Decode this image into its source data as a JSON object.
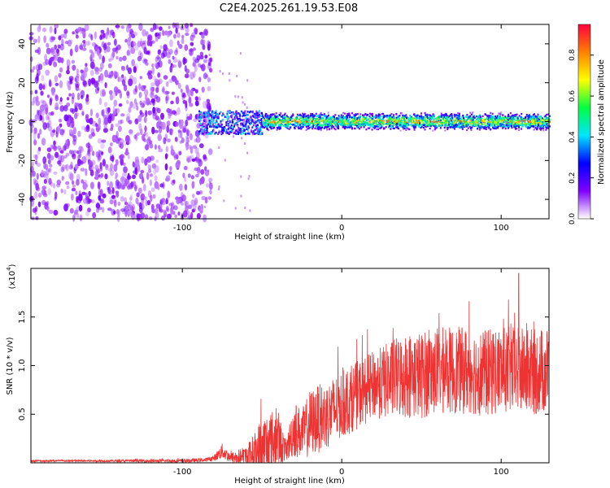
{
  "figure_title": "C2E4.2025.261.19.53.E08",
  "chart_data": [
    {
      "type": "heatmap",
      "title": "C2E4.2025.261.19.53.E08",
      "xlabel": "Height of straight line (km)",
      "ylabel": "Frequency (Hz)",
      "xlim": [
        -195,
        130
      ],
      "ylim": [
        -50,
        50
      ],
      "xticks": [
        -100,
        0,
        100
      ],
      "yticks": [
        -40,
        -20,
        0,
        20,
        40
      ],
      "xtick_labels": [
        "-100",
        "0",
        "100"
      ],
      "ytick_labels": [
        "-40",
        "-20",
        "0",
        "20",
        "40"
      ],
      "colorbar": {
        "label": "Normalized spectral amplitude",
        "range": [
          0,
          0.95
        ],
        "ticks": [
          0.0,
          0.2,
          0.4,
          0.6,
          0.8
        ],
        "tick_labels": [
          "0.0",
          "0.2",
          "0.4",
          "0.6",
          "0.8"
        ],
        "colormap": [
          "#ffffff",
          "#8000ff",
          "#0000ff",
          "#00e5ff",
          "#00ff40",
          "#ffff00",
          "#ff8000",
          "#ff0040"
        ]
      },
      "regions": [
        {
          "name": "noise",
          "x_range": [
            -195,
            -90
          ],
          "freq_range": [
            -50,
            50
          ],
          "amplitude": 0.15
        },
        {
          "name": "onset",
          "x_range": [
            -90,
            -50
          ],
          "center_freq": 0,
          "half_width_hz": 6,
          "amplitude": 0.3
        },
        {
          "name": "carrier",
          "x_range": [
            -50,
            130
          ],
          "center_freq": 0.5,
          "half_width_hz": 3,
          "peak_amplitude": 0.9
        }
      ]
    },
    {
      "type": "line",
      "xlabel": "Height of straight line (km)",
      "ylabel": "SNR (10 * v/v)",
      "scale_label": "(x10",
      "scale_exponent": "4",
      "xlim": [
        -195,
        130
      ],
      "ylim": [
        0,
        2.0
      ],
      "xticks": [
        -100,
        0,
        100
      ],
      "yticks": [
        0.5,
        1.0,
        1.5
      ],
      "xtick_labels": [
        "-100",
        "0",
        "100"
      ],
      "ytick_labels": [
        "0.5",
        "1.0",
        "1.5"
      ],
      "series": [
        {
          "name": "SNR",
          "color": "#ee3333",
          "x": [
            -195,
            -150,
            -100,
            -85,
            -80,
            -75,
            -70,
            -60,
            -55,
            -50,
            -45,
            -40,
            -35,
            -30,
            -25,
            -20,
            -15,
            -10,
            0,
            10,
            20,
            30,
            40,
            50,
            60,
            70,
            80,
            90,
            100,
            110,
            120,
            130
          ],
          "baseline": [
            0.02,
            0.02,
            0.02,
            0.03,
            0.05,
            0.12,
            0.05,
            0.06,
            0.1,
            0.15,
            0.2,
            0.25,
            0.12,
            0.35,
            0.3,
            0.4,
            0.45,
            0.48,
            0.6,
            0.7,
            0.8,
            0.85,
            0.9,
            0.9,
            0.95,
            0.95,
            0.95,
            0.92,
            0.95,
            0.95,
            0.93,
            0.95
          ],
          "spread": [
            0.01,
            0.01,
            0.02,
            0.02,
            0.03,
            0.08,
            0.05,
            0.12,
            0.2,
            0.35,
            0.35,
            0.3,
            0.1,
            0.3,
            0.25,
            0.35,
            0.35,
            0.35,
            0.35,
            0.35,
            0.35,
            0.4,
            0.45,
            0.45,
            0.45,
            0.45,
            0.45,
            0.45,
            0.45,
            0.45,
            0.45,
            0.45
          ],
          "max_value": 1.95,
          "max_at_x": 111
        }
      ]
    }
  ]
}
